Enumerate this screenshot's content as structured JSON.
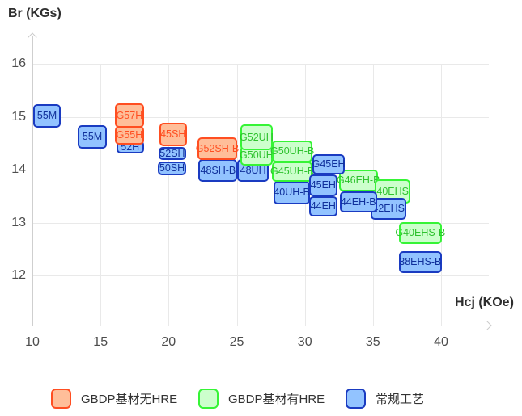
{
  "axes": {
    "y_title": "Br (KGs)",
    "x_title": "Hcj (KOe)",
    "x_ticks": [
      10,
      15,
      20,
      25,
      30,
      35,
      40
    ],
    "y_ticks": [
      16,
      15,
      14,
      13,
      12
    ]
  },
  "families": {
    "orange": {
      "fill": "#FFBE99",
      "border": "#FF4E21",
      "text": "#FF4E21"
    },
    "green": {
      "fill": "#CCFFCC",
      "border": "#36F436",
      "text": "#2EC22E"
    },
    "blue": {
      "fill": "#92C3FF",
      "border": "#1A3BC1",
      "text": "#10309B"
    }
  },
  "legend_items": [
    {
      "family": "orange",
      "label": "GBDP基材无HRE"
    },
    {
      "family": "green",
      "label": "GBDP基材有HRE"
    },
    {
      "family": "blue",
      "label": "常规工艺"
    }
  ],
  "chart_data": {
    "type": "scatter",
    "title": "",
    "xlabel": "Hcj (KOe)",
    "ylabel": "Br (KGs)",
    "xlim": [
      10,
      40
    ],
    "ylim": [
      12,
      16
    ],
    "grid": true,
    "legend_position": "bottom",
    "note": "Each point is a magnet grade drawn as a rounded labeled box covering an Hcj range (KOe) and Br range (KGs); listed in paint order (bottom to top).",
    "points": [
      {
        "label": "55M",
        "family": "blue",
        "hcj": [
          10.05,
          12.1
        ],
        "br": [
          14.8,
          15.23
        ]
      },
      {
        "label": "55M",
        "family": "blue",
        "hcj": [
          13.35,
          15.45
        ],
        "br": [
          14.4,
          14.84
        ]
      },
      {
        "label": "52H",
        "family": "blue",
        "hcj": [
          16.15,
          18.2
        ],
        "br": [
          14.3,
          14.55
        ]
      },
      {
        "label": "G55H",
        "family": "orange",
        "hcj": [
          16.05,
          18.2
        ],
        "br": [
          14.48,
          14.82
        ]
      },
      {
        "label": "G57H",
        "family": "orange",
        "hcj": [
          16.05,
          18.2
        ],
        "br": [
          14.79,
          15.25
        ]
      },
      {
        "label": "50SH",
        "family": "blue",
        "hcj": [
          19.2,
          21.3
        ],
        "br": [
          13.89,
          14.16
        ]
      },
      {
        "label": "52SH",
        "family": "blue",
        "hcj": [
          19.25,
          21.3
        ],
        "br": [
          14.18,
          14.43
        ]
      },
      {
        "label": "45SH",
        "family": "orange",
        "hcj": [
          19.3,
          21.35
        ],
        "br": [
          14.44,
          14.89
        ]
      },
      {
        "label": "48SH-B",
        "family": "blue",
        "hcj": [
          22.2,
          25.05
        ],
        "br": [
          13.77,
          14.2
        ]
      },
      {
        "label": "G52SH-B",
        "family": "orange",
        "hcj": [
          22.1,
          25.05
        ],
        "br": [
          14.18,
          14.61
        ]
      },
      {
        "label": "48UH",
        "family": "blue",
        "hcj": [
          25.05,
          27.35
        ],
        "br": [
          13.77,
          14.2
        ]
      },
      {
        "label": "G50UH",
        "family": "green",
        "hcj": [
          25.25,
          27.65
        ],
        "br": [
          14.08,
          14.46
        ]
      },
      {
        "label": "G52UH",
        "family": "green",
        "hcj": [
          25.25,
          27.65
        ],
        "br": [
          14.37,
          14.85
        ]
      },
      {
        "label": "40UH-B",
        "family": "blue",
        "hcj": [
          27.7,
          30.4
        ],
        "br": [
          13.34,
          13.79
        ]
      },
      {
        "label": "G45UH-B",
        "family": "green",
        "hcj": [
          27.6,
          30.55
        ],
        "br": [
          13.77,
          14.15
        ]
      },
      {
        "label": "G50UH-B",
        "family": "green",
        "hcj": [
          27.6,
          30.55
        ],
        "br": [
          14.14,
          14.55
        ]
      },
      {
        "label": "44EH",
        "family": "blue",
        "hcj": [
          30.3,
          32.4
        ],
        "br": [
          13.11,
          13.5
        ]
      },
      {
        "label": "45EH",
        "family": "blue",
        "hcj": [
          30.3,
          32.4
        ],
        "br": [
          13.5,
          13.91
        ]
      },
      {
        "label": "G46EH-B",
        "family": "green",
        "hcj": [
          32.5,
          35.35
        ],
        "br": [
          13.59,
          14.0
        ]
      },
      {
        "label": "40EHS",
        "family": "green",
        "hcj": [
          35.15,
          37.75
        ],
        "br": [
          13.36,
          13.82
        ]
      },
      {
        "label": "42EHS",
        "family": "blue",
        "hcj": [
          34.85,
          37.45
        ],
        "br": [
          13.06,
          13.47
        ]
      },
      {
        "label": "44EH-B",
        "family": "blue",
        "hcj": [
          32.55,
          35.3
        ],
        "br": [
          13.19,
          13.59
        ]
      },
      {
        "label": "G45EH",
        "family": "blue",
        "hcj": [
          30.55,
          32.95
        ],
        "br": [
          13.91,
          14.29
        ]
      },
      {
        "label": "38EHS-B",
        "family": "blue",
        "hcj": [
          36.9,
          40.05
        ],
        "br": [
          12.05,
          12.46
        ]
      },
      {
        "label": "G40EHS-B",
        "family": "green",
        "hcj": [
          36.9,
          40.05
        ],
        "br": [
          12.6,
          13.01
        ]
      }
    ]
  }
}
